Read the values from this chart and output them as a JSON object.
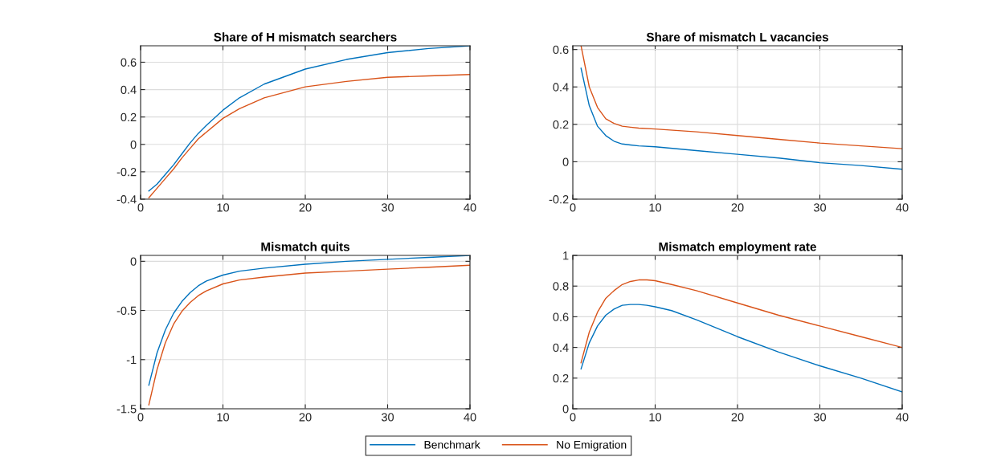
{
  "chart_data": [
    {
      "type": "line",
      "title": "Share of H mismatch searchers",
      "x": [
        1,
        2,
        3,
        4,
        5,
        6,
        7,
        8,
        10,
        12,
        15,
        20,
        25,
        30,
        35,
        40
      ],
      "xlim": [
        0,
        40
      ],
      "xticks": [
        0,
        10,
        20,
        30,
        40
      ],
      "ylim": [
        -0.4,
        0.72
      ],
      "yticks": [
        {
          "value": -0.4,
          "label": "-0.4"
        },
        {
          "value": -0.2,
          "label": "-0.2"
        },
        0,
        0.2,
        0.4,
        0.6
      ],
      "grid": true,
      "legend": "bottom",
      "series": [
        {
          "name": "Benchmark",
          "color": "#0072bd",
          "values": [
            -0.34,
            -0.29,
            -0.22,
            -0.15,
            -0.07,
            0.01,
            0.08,
            0.14,
            0.25,
            0.34,
            0.44,
            0.55,
            0.62,
            0.67,
            0.7,
            0.72
          ]
        },
        {
          "name": "No Emigration",
          "color": "#d95319",
          "values": [
            -0.39,
            -0.32,
            -0.25,
            -0.18,
            -0.1,
            -0.03,
            0.04,
            0.09,
            0.19,
            0.26,
            0.34,
            0.42,
            0.46,
            0.49,
            0.5,
            0.51
          ]
        }
      ]
    },
    {
      "type": "line",
      "title": "Share of mismatch L vacancies",
      "x": [
        1,
        2,
        3,
        4,
        5,
        6,
        7,
        8,
        10,
        15,
        20,
        25,
        30,
        35,
        40
      ],
      "xlim": [
        0,
        40
      ],
      "xticks": [
        0,
        10,
        20,
        30,
        40
      ],
      "ylim": [
        -0.2,
        0.62
      ],
      "yticks": [
        {
          "value": -0.2,
          "label": "-0.2"
        },
        0,
        0.2,
        0.4,
        0.6
      ],
      "grid": true,
      "series": [
        {
          "color": "#0072bd",
          "values": [
            0.5,
            0.3,
            0.19,
            0.14,
            0.11,
            0.095,
            0.09,
            0.085,
            0.08,
            0.06,
            0.04,
            0.02,
            -0.005,
            -0.02,
            -0.04
          ]
        },
        {
          "color": "#d95319",
          "values": [
            0.62,
            0.4,
            0.29,
            0.23,
            0.205,
            0.19,
            0.185,
            0.18,
            0.175,
            0.16,
            0.14,
            0.12,
            0.1,
            0.085,
            0.07
          ]
        }
      ]
    },
    {
      "type": "line",
      "title": "Mismatch quits",
      "x": [
        1,
        2,
        3,
        4,
        5,
        6,
        7,
        8,
        10,
        12,
        15,
        20,
        25,
        30,
        35,
        40
      ],
      "xlim": [
        0,
        40
      ],
      "xticks": [
        0,
        10,
        20,
        30,
        40
      ],
      "ylim": [
        -1.5,
        0.06
      ],
      "yticks": [
        {
          "value": -1.5,
          "label": "-1.5"
        },
        {
          "value": -1,
          "label": "-1"
        },
        {
          "value": -0.5,
          "label": "-0.5"
        },
        0
      ],
      "grid": true,
      "series": [
        {
          "color": "#0072bd",
          "values": [
            -1.26,
            -0.93,
            -0.7,
            -0.53,
            -0.41,
            -0.32,
            -0.25,
            -0.2,
            -0.14,
            -0.1,
            -0.07,
            -0.03,
            0.0,
            0.02,
            0.04,
            0.06
          ]
        },
        {
          "color": "#d95319",
          "values": [
            -1.46,
            -1.1,
            -0.83,
            -0.64,
            -0.51,
            -0.42,
            -0.35,
            -0.3,
            -0.23,
            -0.19,
            -0.16,
            -0.12,
            -0.1,
            -0.08,
            -0.06,
            -0.04
          ]
        }
      ]
    },
    {
      "type": "line",
      "title": "Mismatch employment rate",
      "x": [
        1,
        2,
        3,
        4,
        5,
        6,
        7,
        8,
        9,
        10,
        12,
        15,
        20,
        25,
        30,
        35,
        40
      ],
      "xlim": [
        0,
        40
      ],
      "xticks": [
        0,
        10,
        20,
        30,
        40
      ],
      "ylim": [
        0,
        1
      ],
      "yticks": [
        0,
        0.2,
        0.4,
        0.6,
        0.8,
        1
      ],
      "grid": true,
      "series": [
        {
          "color": "#0072bd",
          "values": [
            0.26,
            0.43,
            0.54,
            0.61,
            0.65,
            0.675,
            0.68,
            0.68,
            0.675,
            0.665,
            0.64,
            0.58,
            0.47,
            0.37,
            0.28,
            0.2,
            0.11
          ]
        },
        {
          "color": "#d95319",
          "values": [
            0.3,
            0.5,
            0.63,
            0.72,
            0.77,
            0.81,
            0.83,
            0.84,
            0.84,
            0.835,
            0.81,
            0.77,
            0.69,
            0.61,
            0.54,
            0.47,
            0.4
          ]
        }
      ]
    }
  ]
}
